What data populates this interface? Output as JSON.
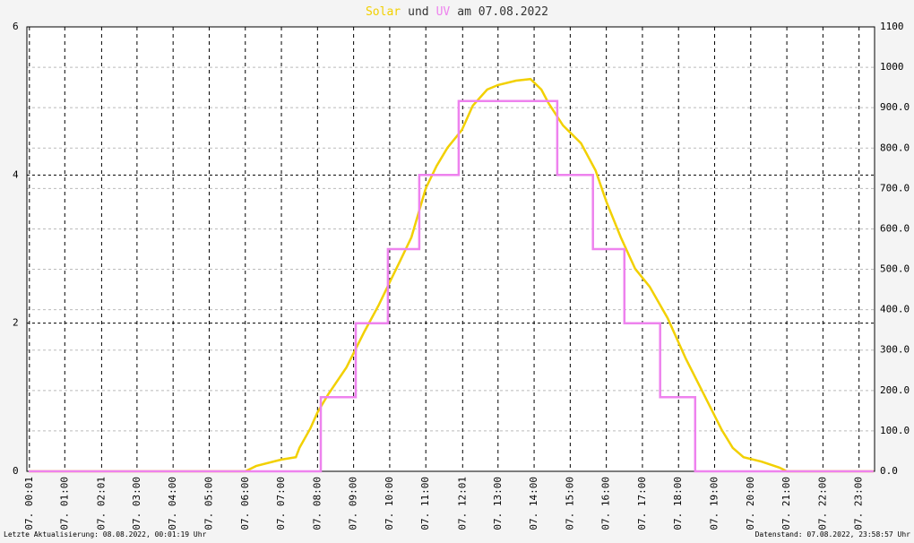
{
  "chart_data": {
    "type": "line",
    "title_connector": "und",
    "title_suffix": "am 07.08.2022",
    "xlim": [
      -0.05,
      23.43
    ],
    "xticks": [
      {
        "value": 0.02,
        "label": "07. 00:01"
      },
      {
        "value": 1,
        "label": "07. 01:00"
      },
      {
        "value": 2.02,
        "label": "07. 02:01"
      },
      {
        "value": 3,
        "label": "07. 03:00"
      },
      {
        "value": 4,
        "label": "07. 04:00"
      },
      {
        "value": 5,
        "label": "07. 05:00"
      },
      {
        "value": 6,
        "label": "07. 06:00"
      },
      {
        "value": 7,
        "label": "07. 07:00"
      },
      {
        "value": 8,
        "label": "07. 08:00"
      },
      {
        "value": 9,
        "label": "07. 09:00"
      },
      {
        "value": 10,
        "label": "07. 10:00"
      },
      {
        "value": 11,
        "label": "07. 11:00"
      },
      {
        "value": 12.02,
        "label": "07. 12:01"
      },
      {
        "value": 13,
        "label": "07. 13:00"
      },
      {
        "value": 14,
        "label": "07. 14:00"
      },
      {
        "value": 15,
        "label": "07. 15:00"
      },
      {
        "value": 16,
        "label": "07. 16:00"
      },
      {
        "value": 17,
        "label": "07. 17:00"
      },
      {
        "value": 18,
        "label": "07. 18:00"
      },
      {
        "value": 19,
        "label": "07. 19:00"
      },
      {
        "value": 20,
        "label": "07. 20:00"
      },
      {
        "value": 21,
        "label": "07. 21:00"
      },
      {
        "value": 22,
        "label": "07. 22:00"
      },
      {
        "value": 23,
        "label": "07. 23:00"
      }
    ],
    "ylim": [
      0,
      6
    ],
    "yticks": [
      0,
      2,
      4,
      6
    ],
    "y2lim": [
      0,
      1100
    ],
    "y2ticks": [
      {
        "value": 0,
        "label": "0.0"
      },
      {
        "value": 100,
        "label": "100.0"
      },
      {
        "value": 200,
        "label": "200.0"
      },
      {
        "value": 300,
        "label": "300.0"
      },
      {
        "value": 400,
        "label": "400.0"
      },
      {
        "value": 500,
        "label": "500.0"
      },
      {
        "value": 600,
        "label": "600.0"
      },
      {
        "value": 700,
        "label": "700.0"
      },
      {
        "value": 800,
        "label": "800.0"
      },
      {
        "value": 900,
        "label": "900.0"
      },
      1000,
      1100
    ],
    "grid": true,
    "series": [
      {
        "name": "Solar",
        "color": "#f2d000",
        "axis": "y2",
        "x": [
          0,
          6.0,
          6.3,
          7.0,
          7.4,
          7.5,
          7.8,
          8.0,
          8.3,
          8.8,
          9.3,
          9.7,
          10.0,
          10.3,
          10.6,
          11.0,
          11.3,
          11.6,
          12.0,
          12.3,
          12.7,
          13.0,
          13.5,
          13.9,
          14.2,
          14.4,
          14.8,
          15.3,
          15.7,
          16.0,
          16.4,
          16.8,
          17.2,
          17.7,
          18.2,
          18.7,
          19.2,
          19.5,
          19.8,
          20.3,
          20.8,
          21.0,
          23.4
        ],
        "values": [
          0,
          0,
          13,
          29,
          35,
          58,
          106,
          146,
          191,
          257,
          346,
          412,
          468,
          523,
          579,
          701,
          756,
          801,
          845,
          905,
          945,
          956,
          967,
          971,
          945,
          911,
          856,
          812,
          745,
          668,
          579,
          501,
          457,
          379,
          279,
          191,
          102,
          58,
          35,
          24,
          9,
          0,
          0
        ]
      },
      {
        "name": "UV",
        "color": "#ee82ee",
        "axis": "y",
        "x": [
          0,
          8.09,
          8.09,
          9.06,
          9.06,
          9.95,
          9.95,
          10.82,
          10.82,
          11.91,
          11.91,
          14.64,
          14.64,
          15.63,
          15.63,
          16.5,
          16.5,
          17.49,
          17.49,
          18.46,
          18.46,
          23.4
        ],
        "values": [
          0,
          0,
          1,
          1,
          2,
          2,
          3,
          3,
          4,
          4,
          5,
          5,
          4,
          4,
          3,
          3,
          2,
          2,
          1,
          1,
          0,
          0
        ]
      }
    ],
    "footer_left": "Letzte Aktualisierung: 08.08.2022, 00:01:19 Uhr",
    "footer_right": "Datenstand: 07.08.2022, 23:58:57 Uhr"
  }
}
